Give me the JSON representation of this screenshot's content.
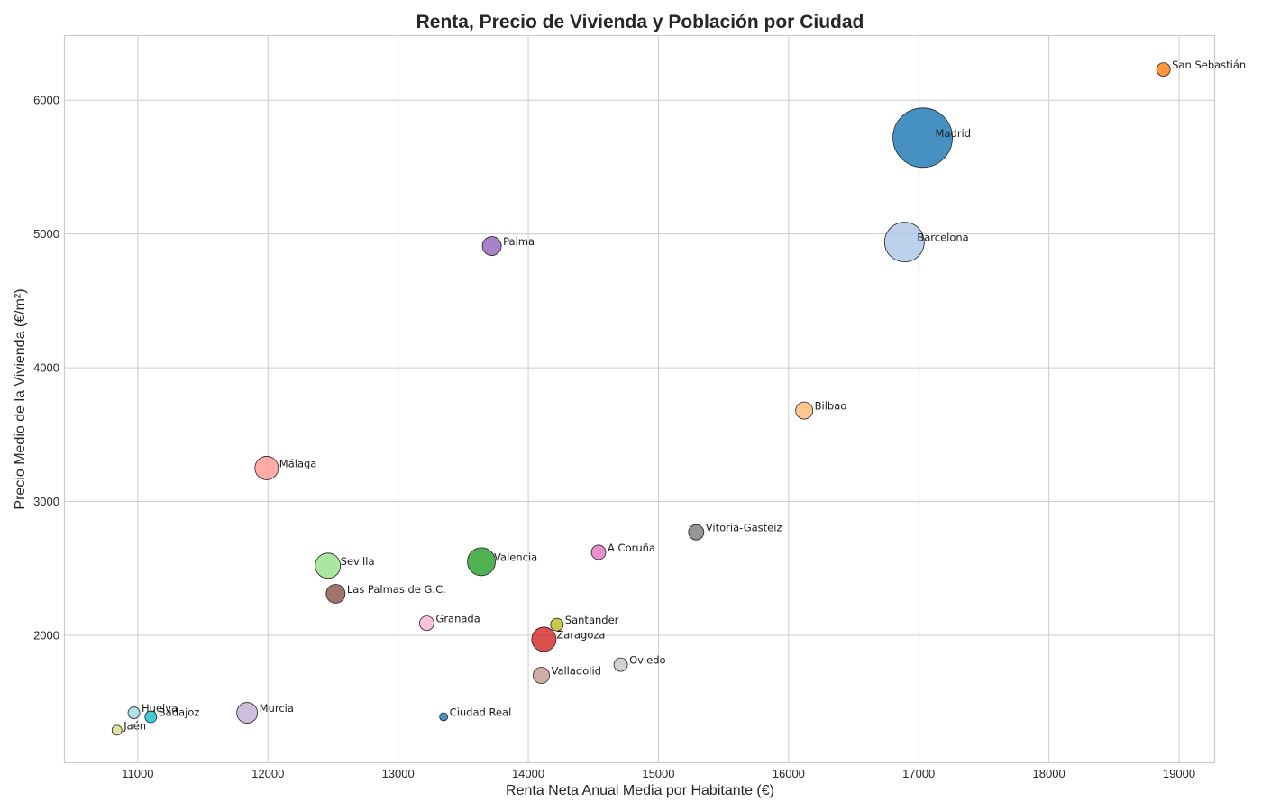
{
  "chart_data": {
    "type": "scatter",
    "title": "Renta, Precio de Vivienda y Población por Ciudad",
    "xlabel": "Renta Neta Anual Media por Habitante (€)",
    "ylabel": "Precio Medio de la Vivienda (€/m²)",
    "xlim": [
      10440,
      19270
    ],
    "ylim": [
      1050,
      6480
    ],
    "xticks": [
      11000,
      12000,
      13000,
      14000,
      15000,
      16000,
      17000,
      18000,
      19000
    ],
    "yticks": [
      2000,
      3000,
      4000,
      5000,
      6000
    ],
    "grid": true,
    "points": [
      {
        "label": "Madrid",
        "x": 17030,
        "y": 5720,
        "size": 33,
        "color": "#1f77b4"
      },
      {
        "label": "San Sebastián",
        "x": 18880,
        "y": 6230,
        "size": 7.5,
        "color": "#ff7f0e"
      },
      {
        "label": "Barcelona",
        "x": 16890,
        "y": 4940,
        "size": 22,
        "color": "#aec7e8"
      },
      {
        "label": "Palma",
        "x": 13720,
        "y": 4910,
        "size": 10.5,
        "color": "#9467bd"
      },
      {
        "label": "Bilbao",
        "x": 16120,
        "y": 3680,
        "size": 9.5,
        "color": "#ffbb78"
      },
      {
        "label": "Málaga",
        "x": 11990,
        "y": 3250,
        "size": 13,
        "color": "#ff9896"
      },
      {
        "label": "Vitoria-Gasteiz",
        "x": 15290,
        "y": 2770,
        "size": 8.5,
        "color": "#7f7f7f"
      },
      {
        "label": "A Coruña",
        "x": 14540,
        "y": 2620,
        "size": 8,
        "color": "#e377c2"
      },
      {
        "label": "Valencia",
        "x": 13640,
        "y": 2550,
        "size": 15.5,
        "color": "#2ca02c"
      },
      {
        "label": "Sevilla",
        "x": 12460,
        "y": 2520,
        "size": 14,
        "color": "#98df8a"
      },
      {
        "label": "Las Palmas de G.C.",
        "x": 12520,
        "y": 2310,
        "size": 10.5,
        "color": "#8c564b"
      },
      {
        "label": "Granada",
        "x": 13220,
        "y": 2090,
        "size": 8,
        "color": "#f7b6d2"
      },
      {
        "label": "Santander",
        "x": 14220,
        "y": 2080,
        "size": 7,
        "color": "#bcbd22"
      },
      {
        "label": "Zaragoza",
        "x": 14120,
        "y": 1970,
        "size": 13.5,
        "color": "#d62728"
      },
      {
        "label": "Oviedo",
        "x": 14710,
        "y": 1780,
        "size": 7.5,
        "color": "#c7c7c7"
      },
      {
        "label": "Valladolid",
        "x": 14100,
        "y": 1700,
        "size": 9,
        "color": "#c49c94"
      },
      {
        "label": "Murcia",
        "x": 11840,
        "y": 1420,
        "size": 11.5,
        "color": "#c5b0d5"
      },
      {
        "label": "Huelva",
        "x": 10970,
        "y": 1420,
        "size": 6.5,
        "color": "#9edae5"
      },
      {
        "label": "Badajoz",
        "x": 11100,
        "y": 1390,
        "size": 6.5,
        "color": "#17becf"
      },
      {
        "label": "Ciudad Real",
        "x": 13350,
        "y": 1390,
        "size": 4.5,
        "color": "#1f77b4"
      },
      {
        "label": "Jaén",
        "x": 10840,
        "y": 1290,
        "size": 5.5,
        "color": "#dbdb8d"
      }
    ]
  }
}
